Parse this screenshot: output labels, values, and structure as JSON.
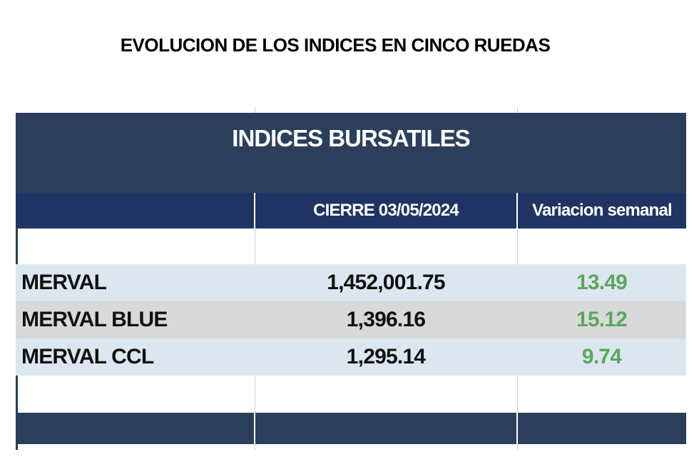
{
  "header": {
    "title": "EVOLUCION DE LOS INDICES EN CINCO RUEDAS"
  },
  "table": {
    "title": "INDICES BURSATILES",
    "columns": [
      "CIERRE 03/05/2024",
      "Variacion semanal"
    ],
    "rows": [
      [
        "MERVAL",
        "1,452,001.75",
        "13.49"
      ],
      [
        "MERVAL BLUE",
        "1,396.16",
        "15.12"
      ],
      [
        "MERVAL CCL",
        "1,295.14",
        "9.74"
      ]
    ]
  }
}
